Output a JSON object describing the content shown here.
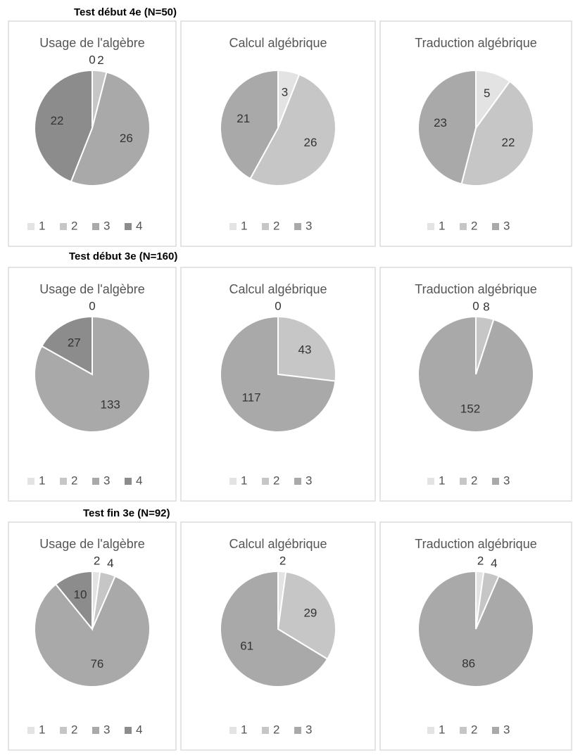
{
  "section_titles": [
    "Test début 4e (N=50)",
    "Test début 3e (N=160)",
    "Test fin 3e (N=92)"
  ],
  "chart_data": [
    {
      "type": "pie",
      "title": "Usage de l'algèbre",
      "categories": [
        "1",
        "2",
        "3",
        "4"
      ],
      "values": [
        0,
        2,
        26,
        22
      ],
      "colors": [
        "#e3e3e3",
        "#c6c6c6",
        "#a9a9a9",
        "#8c8c8c"
      ]
    },
    {
      "type": "pie",
      "title": "Calcul algébrique",
      "categories": [
        "1",
        "2",
        "3"
      ],
      "values": [
        3,
        26,
        21
      ],
      "colors": [
        "#e3e3e3",
        "#c6c6c6",
        "#a9a9a9"
      ]
    },
    {
      "type": "pie",
      "title": "Traduction algébrique",
      "categories": [
        "1",
        "2",
        "3"
      ],
      "values": [
        5,
        22,
        23
      ],
      "colors": [
        "#e3e3e3",
        "#c6c6c6",
        "#a9a9a9"
      ]
    },
    {
      "type": "pie",
      "title": "Usage de l'algèbre",
      "categories": [
        "1",
        "2",
        "3",
        "4"
      ],
      "values": [
        0,
        null,
        133,
        27
      ],
      "colors": [
        "#e3e3e3",
        "#c6c6c6",
        "#a9a9a9",
        "#8c8c8c"
      ]
    },
    {
      "type": "pie",
      "title": "Calcul algébrique",
      "categories": [
        "1",
        "2",
        "3"
      ],
      "values": [
        0,
        43,
        117
      ],
      "colors": [
        "#e3e3e3",
        "#c6c6c6",
        "#a9a9a9"
      ]
    },
    {
      "type": "pie",
      "title": "Traduction algébrique",
      "categories": [
        "1",
        "2",
        "3"
      ],
      "values": [
        0,
        8,
        152
      ],
      "colors": [
        "#e3e3e3",
        "#c6c6c6",
        "#a9a9a9"
      ]
    },
    {
      "type": "pie",
      "title": "Usage de l'algèbre",
      "categories": [
        "1",
        "2",
        "3",
        "4"
      ],
      "values": [
        2,
        4,
        76,
        10
      ],
      "colors": [
        "#e3e3e3",
        "#c6c6c6",
        "#a9a9a9",
        "#8c8c8c"
      ]
    },
    {
      "type": "pie",
      "title": "Calcul algébrique",
      "categories": [
        "1",
        "2",
        "3"
      ],
      "values": [
        2,
        29,
        61
      ],
      "colors": [
        "#e3e3e3",
        "#c6c6c6",
        "#a9a9a9"
      ]
    },
    {
      "type": "pie",
      "title": "Traduction algébrique",
      "categories": [
        "1",
        "2",
        "3"
      ],
      "values": [
        2,
        4,
        86
      ],
      "colors": [
        "#e3e3e3",
        "#c6c6c6",
        "#a9a9a9"
      ]
    }
  ]
}
